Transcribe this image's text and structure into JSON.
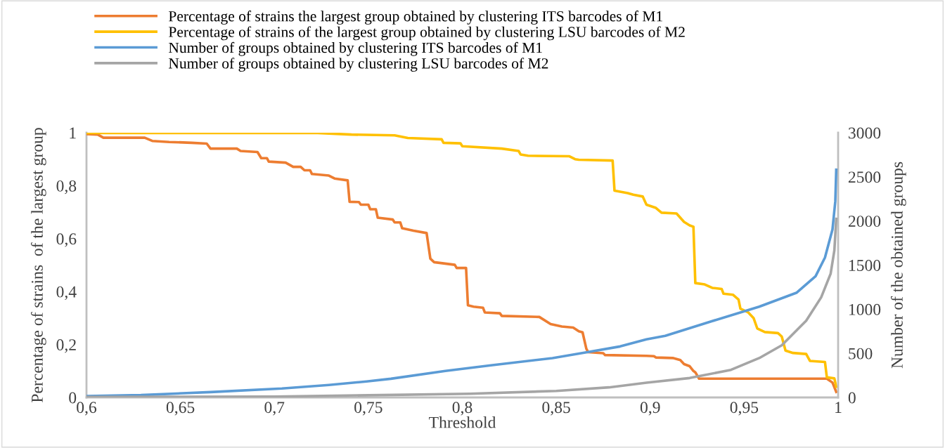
{
  "chart_data": {
    "type": "line",
    "xlabel": "Threshold",
    "ylabel": "Percentage of strains  of the largest group",
    "y2label": "Number of the obtained groups",
    "xlim": [
      0.6,
      1
    ],
    "xticks": [
      {
        "value": 0.6,
        "label": "0,6"
      },
      {
        "value": 0.65,
        "label": "0,65"
      },
      {
        "value": 0.7,
        "label": "0,7"
      },
      {
        "value": 0.75,
        "label": "0,75"
      },
      {
        "value": 0.8,
        "label": "0,8"
      },
      {
        "value": 0.85,
        "label": "0,85"
      },
      {
        "value": 0.9,
        "label": "0,9"
      },
      {
        "value": 0.95,
        "label": "0,95"
      },
      {
        "value": 1,
        "label": "1"
      }
    ],
    "ylim": [
      0,
      1
    ],
    "yticks": [
      0,
      {
        "value": 0.2,
        "label": "0,2"
      },
      {
        "value": 0.4,
        "label": "0,4"
      },
      {
        "value": 0.6,
        "label": "0,6"
      },
      {
        "value": 0.8,
        "label": "0,8"
      },
      1
    ],
    "y2lim": [
      0,
      3000
    ],
    "y2ticks": [
      0,
      500,
      1000,
      1500,
      2000,
      2500,
      3000
    ],
    "grid": false,
    "legend": "top",
    "marker": "none",
    "line_style": "solid",
    "series": [
      {
        "name": "Percentage of strains the largest group obtained by clustering ITS barcodes of M1",
        "color": "#ed7d31",
        "x": [
          0.6,
          0.606,
          0.609,
          0.631,
          0.635,
          0.644,
          0.656,
          0.664,
          0.666,
          0.68,
          0.682,
          0.691,
          0.693,
          0.696,
          0.697,
          0.706,
          0.71,
          0.714,
          0.716,
          0.719,
          0.72,
          0.729,
          0.732,
          0.739,
          0.74,
          0.745,
          0.746,
          0.75,
          0.751,
          0.754,
          0.755,
          0.763,
          0.764,
          0.767,
          0.768,
          0.774,
          0.781,
          0.783,
          0.785,
          0.796,
          0.797,
          0.802,
          0.803,
          0.806,
          0.811,
          0.812,
          0.82,
          0.821,
          0.841,
          0.847,
          0.853,
          0.859,
          0.862,
          0.864,
          0.866,
          0.867,
          0.875,
          0.876,
          0.898,
          0.902,
          0.903,
          0.912,
          0.916,
          0.918,
          0.921,
          0.923,
          0.924,
          0.926,
          0.994,
          0.997,
          0.999
        ],
        "values": [
          0.995,
          0.993,
          0.981,
          0.981,
          0.969,
          0.965,
          0.962,
          0.959,
          0.94,
          0.94,
          0.931,
          0.927,
          0.904,
          0.904,
          0.891,
          0.887,
          0.871,
          0.871,
          0.858,
          0.858,
          0.844,
          0.838,
          0.827,
          0.82,
          0.739,
          0.738,
          0.728,
          0.728,
          0.711,
          0.711,
          0.679,
          0.672,
          0.661,
          0.661,
          0.639,
          0.63,
          0.621,
          0.524,
          0.511,
          0.501,
          0.489,
          0.489,
          0.348,
          0.343,
          0.339,
          0.321,
          0.318,
          0.308,
          0.304,
          0.277,
          0.268,
          0.264,
          0.25,
          0.246,
          0.184,
          0.171,
          0.167,
          0.16,
          0.157,
          0.156,
          0.151,
          0.149,
          0.141,
          0.126,
          0.118,
          0.1,
          0.095,
          0.071,
          0.071,
          0.056,
          0.021
        ]
      },
      {
        "name": "Percentage of strains of the largest group obtained by clustering LSU barcodes of M2",
        "color": "#ffc000",
        "x": [
          0.6,
          0.723,
          0.741,
          0.764,
          0.771,
          0.789,
          0.79,
          0.799,
          0.8,
          0.821,
          0.83,
          0.831,
          0.835,
          0.857,
          0.86,
          0.862,
          0.88,
          0.881,
          0.888,
          0.891,
          0.896,
          0.898,
          0.903,
          0.906,
          0.914,
          0.918,
          0.921,
          0.923,
          0.924,
          0.929,
          0.933,
          0.938,
          0.939,
          0.944,
          0.947,
          0.948,
          0.952,
          0.955,
          0.957,
          0.961,
          0.968,
          0.97,
          0.972,
          0.976,
          0.983,
          0.985,
          0.993,
          0.994,
          0.998,
          0.999
        ],
        "values": [
          0.999,
          0.999,
          0.993,
          0.99,
          0.98,
          0.975,
          0.962,
          0.96,
          0.949,
          0.94,
          0.931,
          0.918,
          0.913,
          0.911,
          0.9,
          0.898,
          0.895,
          0.781,
          0.772,
          0.766,
          0.759,
          0.728,
          0.716,
          0.698,
          0.695,
          0.663,
          0.65,
          0.645,
          0.432,
          0.427,
          0.414,
          0.41,
          0.392,
          0.388,
          0.37,
          0.335,
          0.322,
          0.3,
          0.26,
          0.247,
          0.243,
          0.23,
          0.177,
          0.168,
          0.164,
          0.138,
          0.134,
          0.076,
          0.072,
          0.04
        ]
      },
      {
        "name": "Number of groups obtained by clustering ITS barcodes of M1",
        "color": "#5b9bd5",
        "axis": "y2",
        "x": [
          0.6,
          0.629,
          0.666,
          0.704,
          0.729,
          0.749,
          0.762,
          0.791,
          0.816,
          0.848,
          0.866,
          0.884,
          0.898,
          0.908,
          0.933,
          0.958,
          0.978,
          0.988,
          0.993,
          0.997,
          0.9985,
          0.999
        ],
        "values": [
          16,
          27,
          61,
          101,
          141,
          181,
          212,
          300,
          366,
          446,
          512,
          578,
          658,
          698,
          865,
          1029,
          1188,
          1374,
          1586,
          1904,
          2223,
          2581
        ]
      },
      {
        "name": "Number of groups obtained by clustering LSU barcodes of M2",
        "color": "#a5a5a5",
        "axis": "y2",
        "x": [
          0.6,
          0.7,
          0.75,
          0.804,
          0.85,
          0.878,
          0.898,
          0.921,
          0.943,
          0.958,
          0.97,
          0.983,
          0.991,
          0.996,
          0.998,
          0.999
        ],
        "values": [
          5,
          10,
          25,
          42,
          74,
          114,
          167,
          220,
          313,
          446,
          591,
          870,
          1135,
          1401,
          1666,
          2024
        ]
      }
    ]
  }
}
